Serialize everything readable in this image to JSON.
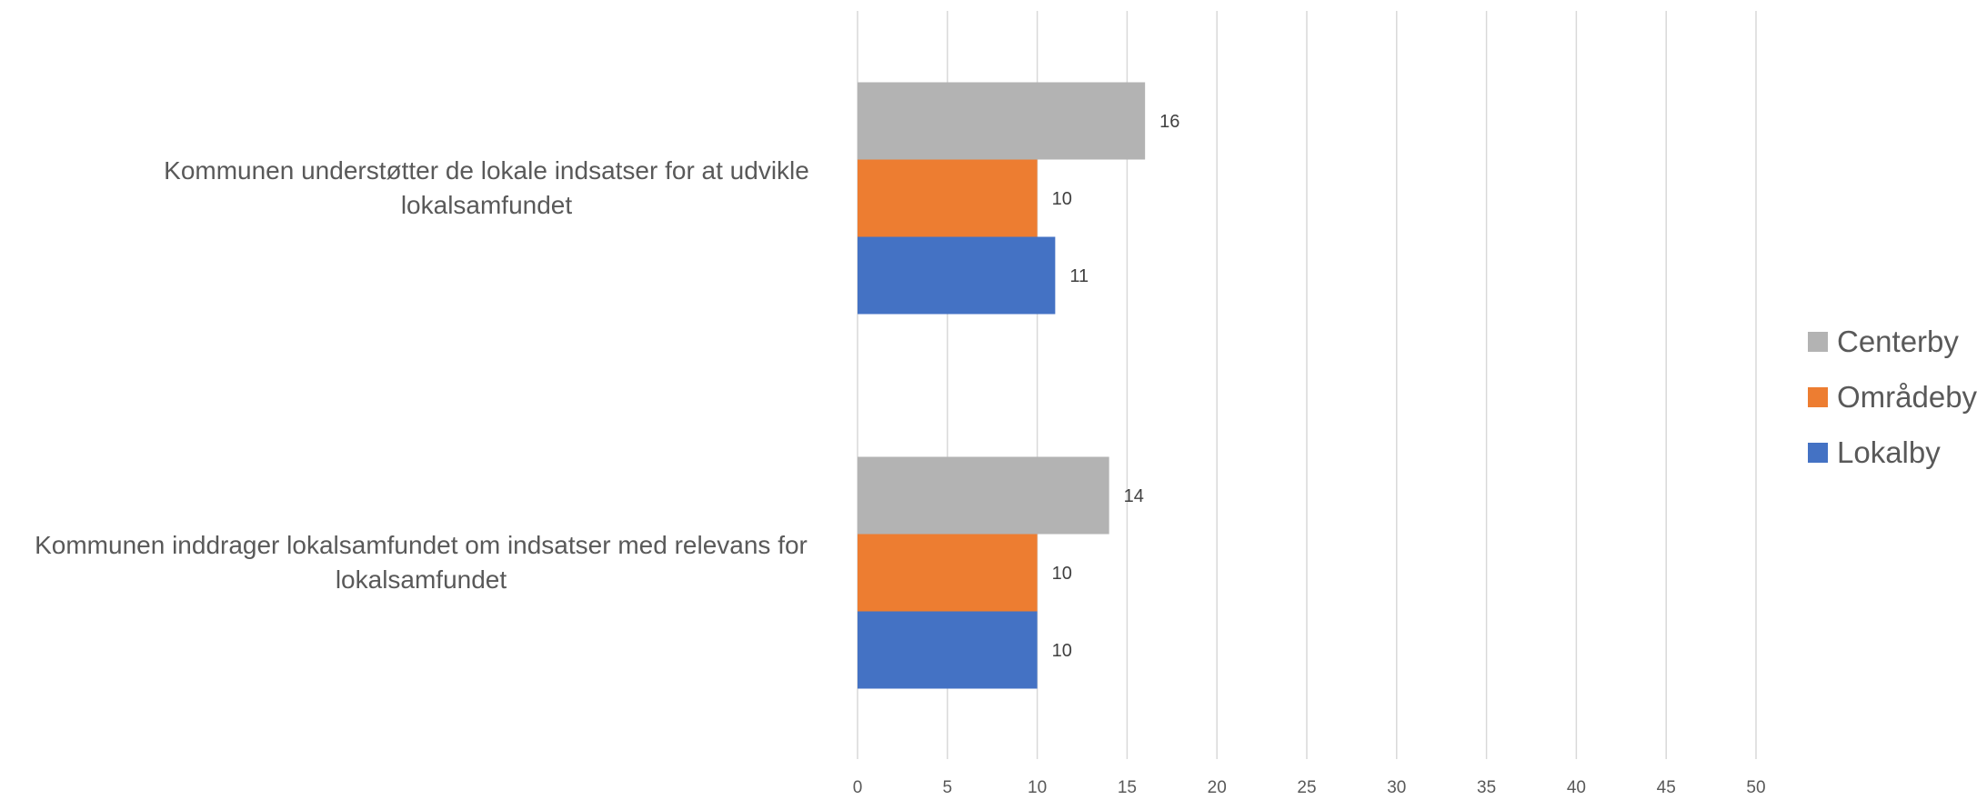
{
  "chart_data": {
    "type": "bar",
    "orientation": "horizontal",
    "categories": [
      "Kommunen understøtter de lokale indsatser for at udvikle lokalsamfundet",
      "Kommunen inddrager lokalsamfundet om indsatser med relevans for lokalsamfundet"
    ],
    "category_lines": [
      [
        "Kommunen understøtter de lokale indsatser for at udvikle",
        "lokalsamfundet"
      ],
      [
        "Kommunen inddrager lokalsamfundet om indsatser med relevans for",
        "lokalsamfundet"
      ]
    ],
    "series": [
      {
        "name": "Centerby",
        "color": "#b3b3b3",
        "values": [
          16,
          14
        ]
      },
      {
        "name": "Områdeby",
        "color": "#ed7d31",
        "values": [
          10,
          10
        ]
      },
      {
        "name": "Lokalby",
        "color": "#4472c4",
        "values": [
          11,
          10
        ]
      }
    ],
    "xlim": [
      0,
      50
    ],
    "x_ticks": [
      "0",
      "5",
      "10",
      "15",
      "20",
      "25",
      "30",
      "35",
      "40",
      "45",
      "50"
    ],
    "grid": true,
    "data_labels": true,
    "legend_position": "right",
    "title": "",
    "xlabel": "",
    "ylabel": ""
  }
}
